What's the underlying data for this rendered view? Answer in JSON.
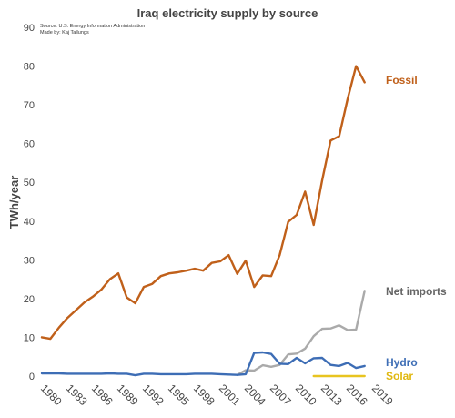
{
  "chart_data": {
    "type": "line",
    "title": "Iraq electricity supply by source",
    "source_lines": [
      "Source: U.S. Energy Information Administration",
      "Made by: Kaj Tallungs"
    ],
    "ylabel": "TWh/year",
    "xlabel": "",
    "xlim": [
      1980,
      2019
    ],
    "ylim": [
      0,
      90
    ],
    "yticks": [
      "0",
      "10",
      "20",
      "30",
      "40",
      "50",
      "60",
      "70",
      "80",
      "90"
    ],
    "xticks": [
      "1980",
      "1983",
      "1986",
      "1989",
      "1992",
      "1995",
      "1998",
      "2001",
      "2004",
      "2007",
      "2010",
      "2013",
      "2016",
      "2019"
    ],
    "grid": false,
    "legend": "inline labels at right end of each line",
    "series": [
      {
        "name": "Fossil",
        "color": "#c0601a",
        "x": [
          1980,
          1981,
          1982,
          1983,
          1984,
          1985,
          1986,
          1987,
          1988,
          1989,
          1990,
          1991,
          1992,
          1993,
          1994,
          1995,
          1996,
          1997,
          1998,
          1999,
          2000,
          2001,
          2002,
          2003,
          2004,
          2005,
          2006,
          2007,
          2008,
          2009,
          2010,
          2011,
          2012,
          2013,
          2014,
          2015,
          2016,
          2017,
          2018
        ],
        "values": [
          10,
          9.6,
          12.5,
          15,
          17,
          19,
          20.5,
          22.3,
          25,
          26.5,
          20.3,
          18.8,
          23,
          23.8,
          25.8,
          26.5,
          26.8,
          27.2,
          27.7,
          27.2,
          29.2,
          29.6,
          31.2,
          26.4,
          29.8,
          23,
          26,
          25.8,
          31.2,
          39.8,
          41.6,
          47.6,
          39,
          50.5,
          60.8,
          61.9,
          71.5,
          80,
          75.8
        ]
      },
      {
        "name": "Net imports",
        "color": "#aaaaaa",
        "x": [
          2003,
          2004,
          2005,
          2006,
          2007,
          2008,
          2009,
          2010,
          2011,
          2012,
          2013,
          2014,
          2015,
          2016,
          2017,
          2018
        ],
        "values": [
          0.3,
          1.5,
          1.4,
          2.8,
          2.4,
          2.9,
          5.6,
          5.8,
          7.1,
          10.3,
          12.2,
          12.3,
          13.1,
          11.9,
          12,
          22
        ]
      },
      {
        "name": "Hydro",
        "color": "#3d6db5",
        "x": [
          1980,
          1981,
          1982,
          1983,
          1984,
          1985,
          1986,
          1987,
          1988,
          1989,
          1990,
          1991,
          1992,
          1993,
          1994,
          1995,
          1996,
          1997,
          1998,
          1999,
          2000,
          2001,
          2002,
          2003,
          2004,
          2005,
          2006,
          2007,
          2008,
          2009,
          2010,
          2011,
          2012,
          2013,
          2014,
          2015,
          2016,
          2017,
          2018
        ],
        "values": [
          0.7,
          0.7,
          0.7,
          0.6,
          0.6,
          0.6,
          0.6,
          0.6,
          0.7,
          0.6,
          0.6,
          0.2,
          0.6,
          0.6,
          0.5,
          0.5,
          0.5,
          0.5,
          0.6,
          0.6,
          0.6,
          0.5,
          0.4,
          0.3,
          0.5,
          6,
          6.1,
          5.7,
          3.2,
          3.1,
          4.7,
          3.3,
          4.6,
          4.7,
          2.9,
          2.6,
          3.4,
          2.1,
          2.6
        ]
      },
      {
        "name": "Solar",
        "color": "#e8c420",
        "x": [
          2012,
          2013,
          2014,
          2015,
          2016,
          2017,
          2018
        ],
        "values": [
          0,
          0,
          0,
          0,
          0,
          0,
          0
        ]
      }
    ]
  }
}
